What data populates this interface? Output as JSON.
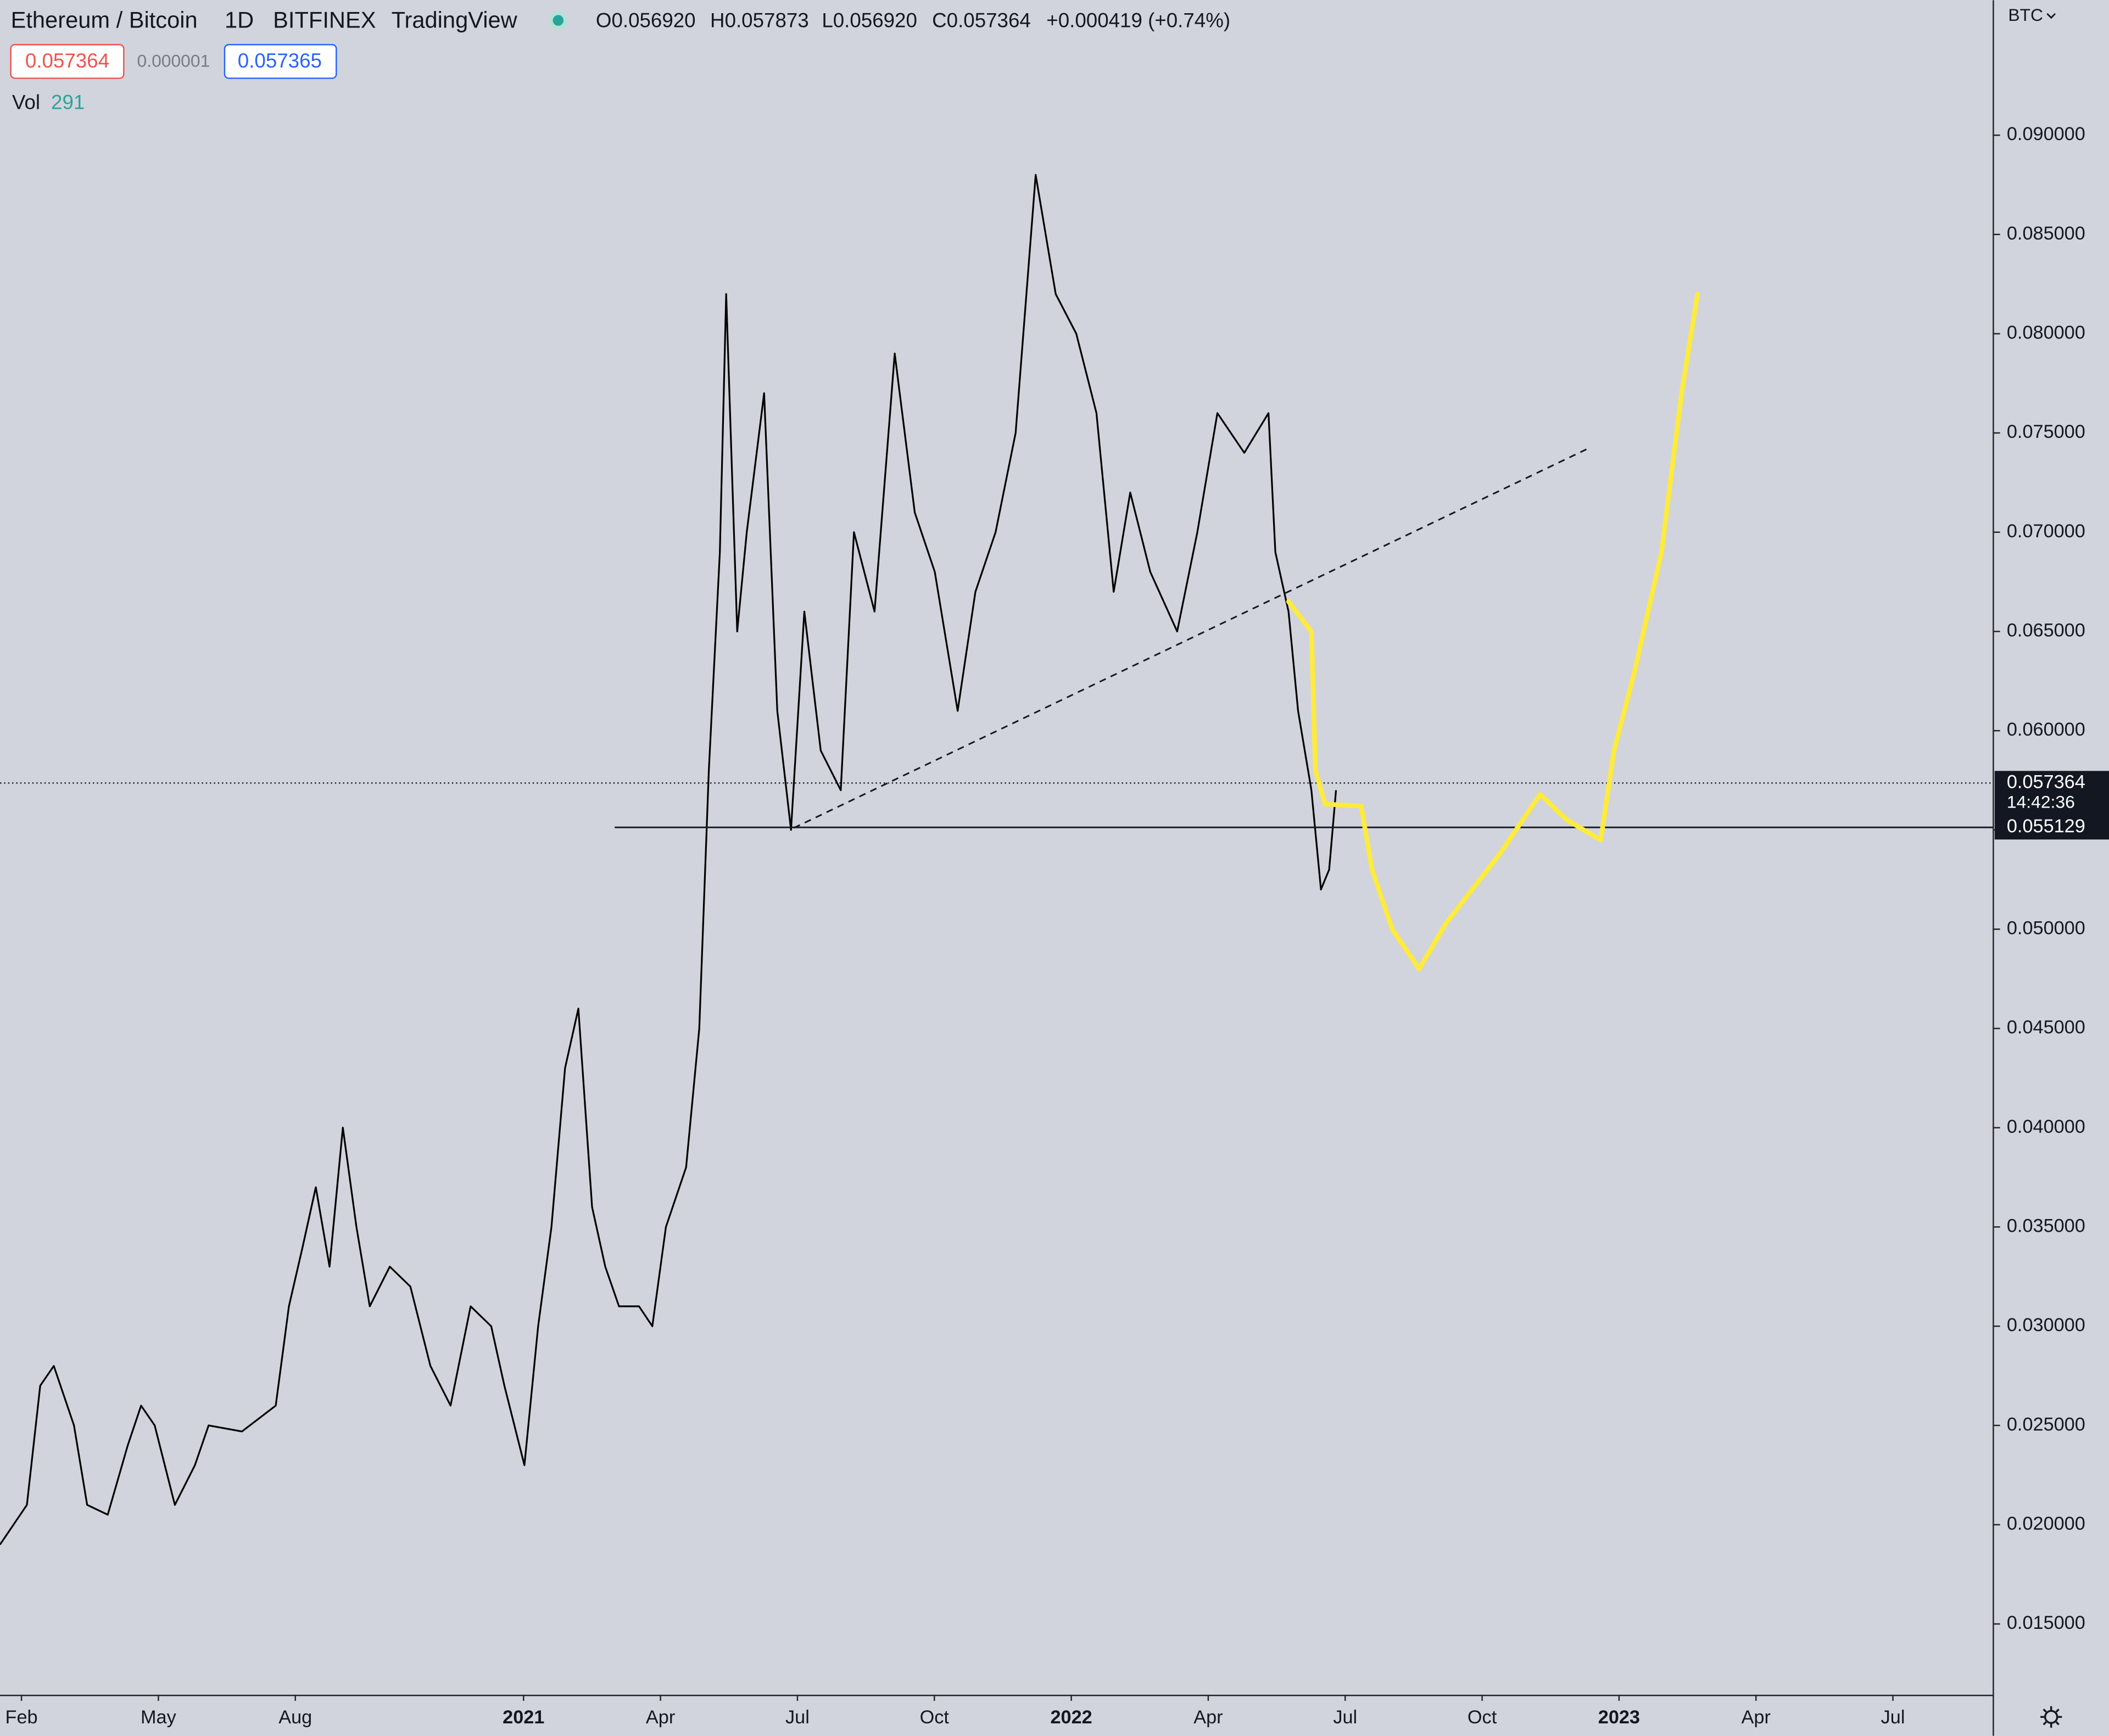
{
  "header": {
    "symbol": "Ethereum / Bitcoin",
    "interval": "1D",
    "exchange": "BITFINEX",
    "source": "TradingView",
    "open": "O0.056920",
    "high": "H0.057873",
    "low": "L0.056920",
    "close": "C0.057364",
    "change": "+0.000419 (+0.74%)",
    "bid": "0.057364",
    "spread": "0.000001",
    "ask": "0.057365",
    "volume_label": "Vol",
    "volume_value": "291",
    "currency": "BTC"
  },
  "chart_data": {
    "type": "line",
    "xlim": [
      0.53,
      44.2
    ],
    "xticks": [
      {
        "value": 1,
        "label": "Feb"
      },
      {
        "value": 4,
        "label": "May"
      },
      {
        "value": 7,
        "label": "Aug"
      },
      {
        "value": 12,
        "label": "2021"
      },
      {
        "value": 15,
        "label": "Apr"
      },
      {
        "value": 18,
        "label": "Jul"
      },
      {
        "value": 21,
        "label": "Oct"
      },
      {
        "value": 24,
        "label": "2022"
      },
      {
        "value": 27,
        "label": "Apr"
      },
      {
        "value": 30,
        "label": "Jul"
      },
      {
        "value": 33,
        "label": "Oct"
      },
      {
        "value": 36,
        "label": "2023"
      },
      {
        "value": 39,
        "label": "Apr"
      },
      {
        "value": 42,
        "label": "Jul"
      }
    ],
    "ylim": [
      0.0114,
      0.0968
    ],
    "yticks": [
      {
        "value": 0.015,
        "label": "0.015000"
      },
      {
        "value": 0.02,
        "label": "0.020000"
      },
      {
        "value": 0.025,
        "label": "0.025000"
      },
      {
        "value": 0.03,
        "label": "0.030000"
      },
      {
        "value": 0.035,
        "label": "0.035000"
      },
      {
        "value": 0.04,
        "label": "0.040000"
      },
      {
        "value": 0.045,
        "label": "0.045000"
      },
      {
        "value": 0.05,
        "label": "0.050000"
      },
      {
        "value": 0.055,
        "label": "0.055000"
      },
      {
        "value": 0.06,
        "label": "0.060000"
      },
      {
        "value": 0.065,
        "label": "0.065000"
      },
      {
        "value": 0.07,
        "label": "0.070000"
      },
      {
        "value": 0.075,
        "label": "0.075000"
      },
      {
        "value": 0.08,
        "label": "0.080000"
      },
      {
        "value": 0.085,
        "label": "0.085000"
      },
      {
        "value": 0.09,
        "label": "0.090000"
      }
    ],
    "series": [
      {
        "color": "#000000",
        "x": [
          0.53,
          1.12,
          1.41,
          1.71,
          2.15,
          2.44,
          2.89,
          3.33,
          3.62,
          3.92,
          4.36,
          4.8,
          5.1,
          5.83,
          6.57,
          6.86,
          7.16,
          7.45,
          7.75,
          8.04,
          8.34,
          8.63,
          9.07,
          9.52,
          9.96,
          10.4,
          10.84,
          11.29,
          11.58,
          12.02,
          12.32,
          12.61,
          12.91,
          13.2,
          13.5,
          13.79,
          14.09,
          14.53,
          14.82,
          15.12,
          15.56,
          15.85,
          16.06,
          16.3,
          16.44,
          16.68,
          16.89,
          17.27,
          17.56,
          17.86,
          18.15,
          18.51,
          18.95,
          19.24,
          19.69,
          20.13,
          20.57,
          21.01,
          21.51,
          21.9,
          22.34,
          22.78,
          23.22,
          23.66,
          24.11,
          24.55,
          24.93,
          25.29,
          25.73,
          26.32,
          26.76,
          27.2,
          27.79,
          28.32,
          28.47,
          28.76,
          28.97,
          29.26,
          29.47,
          29.65,
          29.8
        ],
        "values": [
          0.019,
          0.021,
          0.027,
          0.028,
          0.025,
          0.021,
          0.0205,
          0.024,
          0.026,
          0.025,
          0.021,
          0.023,
          0.025,
          0.0247,
          0.026,
          0.031,
          0.034,
          0.037,
          0.033,
          0.04,
          0.035,
          0.031,
          0.033,
          0.032,
          0.028,
          0.026,
          0.031,
          0.03,
          0.027,
          0.023,
          0.03,
          0.035,
          0.043,
          0.046,
          0.036,
          0.033,
          0.031,
          0.031,
          0.03,
          0.035,
          0.038,
          0.045,
          0.058,
          0.069,
          0.082,
          0.065,
          0.07,
          0.077,
          0.061,
          0.055,
          0.066,
          0.059,
          0.057,
          0.07,
          0.066,
          0.079,
          0.071,
          0.068,
          0.061,
          0.067,
          0.07,
          0.075,
          0.088,
          0.082,
          0.08,
          0.076,
          0.067,
          0.072,
          0.068,
          0.065,
          0.07,
          0.076,
          0.074,
          0.076,
          0.069,
          0.066,
          0.061,
          0.057,
          0.052,
          0.053,
          0.057
        ]
      }
    ],
    "last_price": 0.057364,
    "countdown": "14:42:36",
    "hline": 0.055129,
    "trendline": {
      "x": [
        17.92,
        35.31
      ],
      "values": [
        0.0551,
        0.0742
      ]
    },
    "projection": {
      "color": "#ffeb3b",
      "x": [
        28.76,
        29.26,
        29.35,
        29.56,
        30.35,
        30.59,
        31.03,
        31.62,
        32.21,
        33.39,
        34.27,
        34.86,
        35.6,
        35.89,
        36.34,
        36.93,
        37.37,
        37.72
      ],
      "values": [
        0.0665,
        0.065,
        0.058,
        0.0563,
        0.0562,
        0.053,
        0.05,
        0.048,
        0.0503,
        0.0538,
        0.0568,
        0.0555,
        0.0545,
        0.059,
        0.063,
        0.069,
        0.077,
        0.082
      ]
    }
  }
}
